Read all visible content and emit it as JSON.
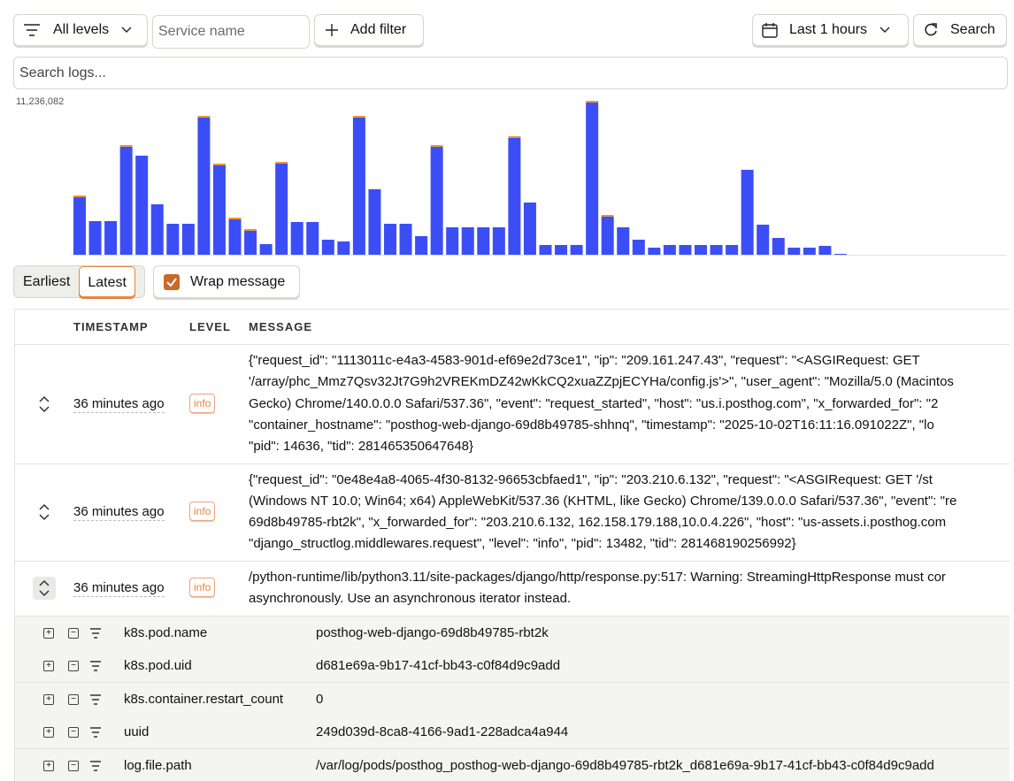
{
  "toolbar": {
    "level_filter": "All levels",
    "service_placeholder": "Service name",
    "add_filter": "Add filter",
    "date_range": "Last 1 hours",
    "search_button": "Search",
    "search_placeholder": "Search logs..."
  },
  "chart_data": {
    "type": "bar",
    "stacked": true,
    "ylim": [
      0,
      11236082
    ],
    "yticks": [
      {
        "value": 11236082,
        "label": "11,236,082"
      }
    ],
    "series": [
      {
        "color": "#3b4ef6",
        "values": [
          4173000,
          2440000,
          2440000,
          7832000,
          7190000,
          3659000,
          2247000,
          2247000,
          9951000,
          6484000,
          2568000,
          1733000,
          770000,
          6613000,
          2375000,
          2375000,
          1091000,
          963000,
          9951000,
          4751000,
          2247000,
          2247000,
          1348000,
          7832000,
          1990000,
          1990000,
          1990000,
          1990000,
          8474000,
          3788000,
          706000,
          706000,
          706000,
          11042000,
          2761000,
          1990000,
          1091000,
          514000,
          706000,
          706000,
          706000,
          706000,
          706000,
          6163000,
          2183000,
          1220000,
          514000,
          514000,
          642000,
          64000
        ]
      },
      {
        "color": "#e8953a",
        "values": [
          128000,
          0,
          0,
          128000,
          0,
          0,
          0,
          0,
          128000,
          128000,
          128000,
          128000,
          0,
          128000,
          0,
          0,
          0,
          0,
          128000,
          0,
          0,
          0,
          0,
          128000,
          0,
          0,
          0,
          0,
          128000,
          0,
          0,
          0,
          0,
          128000,
          128000,
          0,
          0,
          0,
          0,
          0,
          0,
          0,
          0,
          0,
          0,
          0,
          0,
          0,
          0,
          0
        ]
      }
    ]
  },
  "controls": {
    "order": [
      "Earliest",
      "Latest"
    ],
    "wrap": "Wrap message"
  },
  "table": {
    "columns": [
      "TIMESTAMP",
      "LEVEL",
      "MESSAGE"
    ],
    "rows": [
      {
        "timestamp": "36 minutes ago",
        "level": "info",
        "message": [
          "{\"request_id\": \"1113011c-e4a3-4583-901d-ef69e2d73ce1\", \"ip\": \"209.161.247.43\", \"request\": \"<ASGIRequest: GET",
          "'/array/phc_Mmz7Qsv32Jt7G9h2VREKmDZ42wKkCQ2xuaZZpjECYHa/config.js'>\", \"user_agent\": \"Mozilla/5.0 (Macintos",
          "Gecko) Chrome/140.0.0.0 Safari/537.36\", \"event\": \"request_started\", \"host\": \"us.i.posthog.com\", \"x_forwarded_for\": \"2",
          "\"container_hostname\": \"posthog-web-django-69d8b49785-shhnq\", \"timestamp\": \"2025-10-02T16:11:16.091022Z\", \"lo",
          "\"pid\": 14636, \"tid\": 281465350647648}"
        ]
      },
      {
        "timestamp": "36 minutes ago",
        "level": "info",
        "message": [
          "{\"request_id\": \"0e48e4a8-4065-4f30-8132-96653cbfaed1\", \"ip\": \"203.210.6.132\", \"request\": \"<ASGIRequest: GET '/st",
          "(Windows NT 10.0; Win64; x64) AppleWebKit/537.36 (KHTML, like Gecko) Chrome/139.0.0.0 Safari/537.36\", \"event\": \"re",
          "69d8b49785-rbt2k\", \"x_forwarded_for\": \"203.210.6.132, 162.158.179.188,10.0.4.226\", \"host\": \"us-assets.i.posthog.com",
          "\"django_structlog.middlewares.request\", \"level\": \"info\", \"pid\": 13482, \"tid\": 281468190256992}"
        ]
      },
      {
        "timestamp": "36 minutes ago",
        "level": "info",
        "message": [
          "/python-runtime/lib/python3.11/site-packages/django/http/response.py:517: Warning: StreamingHttpResponse must cor",
          "asynchronously. Use an asynchronous iterator instead."
        ],
        "attributes": [
          {
            "key": "k8s.pod.name",
            "value": "posthog-web-django-69d8b49785-rbt2k"
          },
          {
            "key": "k8s.pod.uid",
            "value": "d681e69a-9b17-41cf-bb43-c0f84d9c9add"
          },
          {
            "key": "k8s.container.restart_count",
            "value": "0"
          },
          {
            "key": "uuid",
            "value": "249d039d-8ca8-4166-9ad1-228adca4a944"
          },
          {
            "key": "log.file.path",
            "value": "/var/log/pods/posthog_posthog-web-django-69d8b49785-rbt2k_d681e69a-9b17-41cf-bb43-c0f84d9c9add"
          }
        ]
      }
    ]
  }
}
